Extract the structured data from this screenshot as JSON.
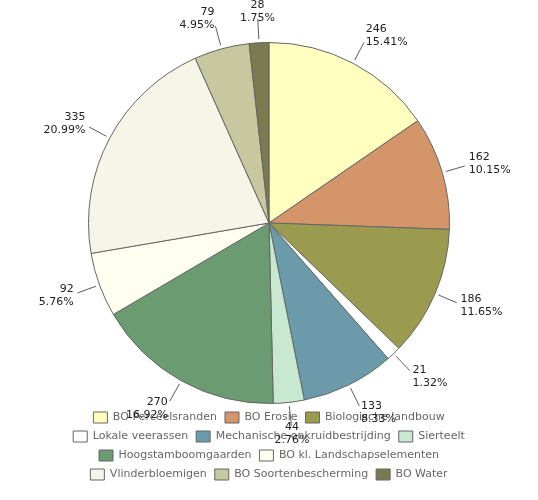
{
  "chart_data": {
    "type": "pie",
    "categories": [
      "BO Perceelsranden",
      "BO Erosie",
      "Biologische landbouw",
      "Lokale veerassen",
      "Mechanische onkruidbestrijding",
      "Sierteelt",
      "Hoogstamboomgaarden",
      "BO kl. Landschapselementen",
      "Vlinderbloemigen",
      "BO Soortenbescherming",
      "BO Water"
    ],
    "values": [
      246,
      162,
      186,
      21,
      133,
      44,
      270,
      92,
      335,
      79,
      28
    ],
    "value_labels": [
      [
        "246",
        "15.41%"
      ],
      [
        "162",
        "10.15%"
      ],
      [
        "186",
        "11.65%"
      ],
      [
        "21",
        "1.32%"
      ],
      [
        "133",
        "8.33%"
      ],
      [
        "44",
        "2.76%"
      ],
      [
        "270",
        "16.92%"
      ],
      [
        "92",
        "5.76%"
      ],
      [
        "335",
        "20.99%"
      ],
      [
        "79",
        "4.95%"
      ],
      [
        "28",
        "1.75%"
      ]
    ],
    "colors": [
      "#FFFFC0",
      "#D4956A",
      "#9B9B50",
      "#FFFFFF",
      "#6B9BAA",
      "#C8E8D0",
      "#6B9B70",
      "#FFFFF0",
      "#F5F5E8",
      "#C8C8A0",
      "#7A7A50"
    ],
    "data_labels": true,
    "legend": "bottom"
  }
}
